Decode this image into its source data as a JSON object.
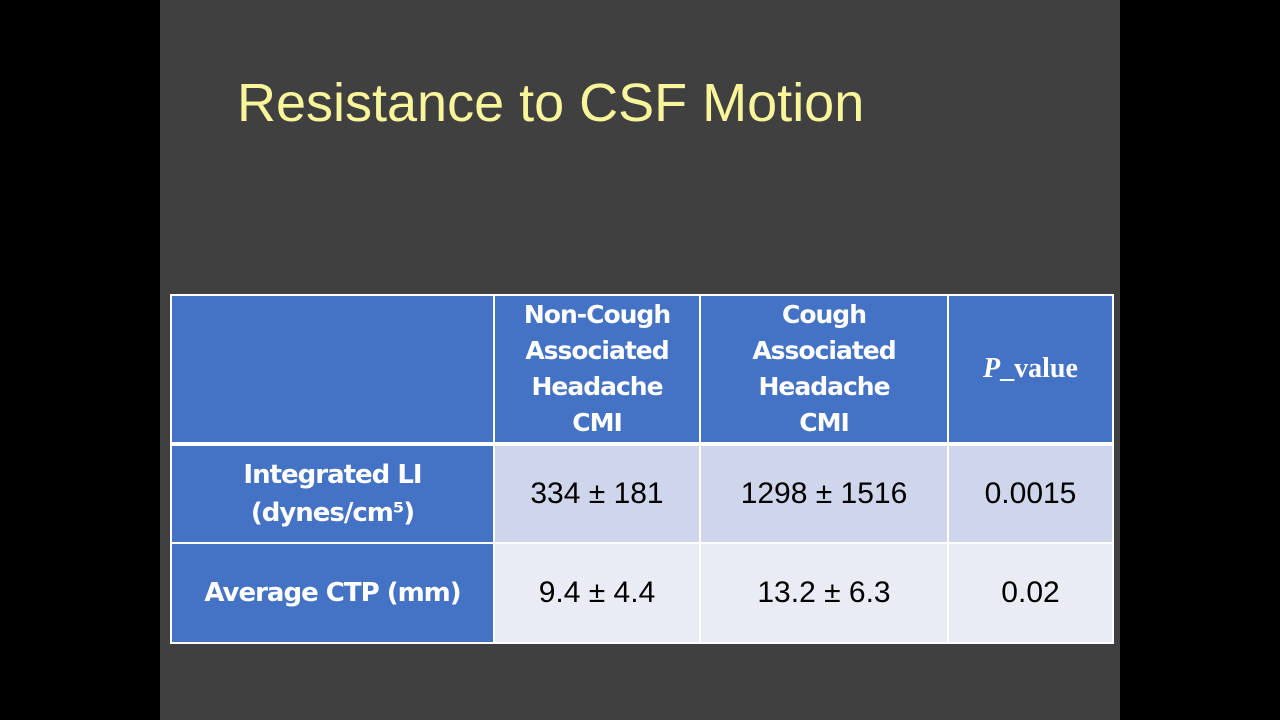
{
  "title": "Resistance to CSF Motion",
  "table": {
    "header": [
      "Non-Cough\nAssociated\nHeadache\nCMI",
      "Cough Associated\nHeadache\nCMI",
      {
        "italic": "P",
        "rest": "_value"
      }
    ],
    "rows": [
      [
        "Integrated LI\n(dynes/cm⁵)",
        "334 ± 181",
        "1298 ± 1516",
        "0.0015"
      ],
      [
        "Average CTP (mm)",
        "9.4 ± 4.4",
        "13.2 ± 6.3",
        "0.02"
      ]
    ]
  }
}
